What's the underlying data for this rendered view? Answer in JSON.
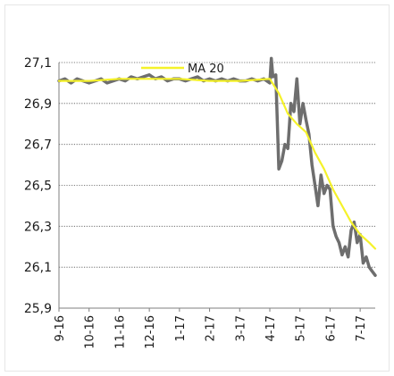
{
  "chart_data": {
    "type": "line",
    "title": "",
    "xlabel": "",
    "ylabel": "",
    "ylim": [
      25.9,
      27.1
    ],
    "y_ticks": [
      "25,9",
      "26,1",
      "26,3",
      "26,5",
      "26,7",
      "26,9",
      "27,1"
    ],
    "y_tick_values": [
      25.9,
      26.1,
      26.3,
      26.5,
      26.7,
      26.9,
      27.1
    ],
    "x_ticks": [
      "9-16",
      "10-16",
      "11-16",
      "12-16",
      "1-17",
      "2-17",
      "3-17",
      "4-17",
      "5-17",
      "6-17",
      "7-17"
    ],
    "xlim": [
      0,
      10.5
    ],
    "grid": "horizontal dotted",
    "legend": {
      "placement": "top-center"
    },
    "series": [
      {
        "name": "",
        "color": "#6e6e6e",
        "x": [
          0,
          0.2,
          0.4,
          0.6,
          0.8,
          1.0,
          1.2,
          1.4,
          1.6,
          1.8,
          2.0,
          2.2,
          2.4,
          2.6,
          2.8,
          3.0,
          3.2,
          3.4,
          3.6,
          3.8,
          4.0,
          4.2,
          4.4,
          4.6,
          4.8,
          5.0,
          5.2,
          5.4,
          5.6,
          5.8,
          6.0,
          6.2,
          6.4,
          6.6,
          6.8,
          7.0,
          7.05,
          7.1,
          7.2,
          7.3,
          7.4,
          7.5,
          7.6,
          7.7,
          7.8,
          7.9,
          8.0,
          8.1,
          8.2,
          8.3,
          8.4,
          8.5,
          8.6,
          8.7,
          8.8,
          8.9,
          9.0,
          9.1,
          9.2,
          9.3,
          9.4,
          9.5,
          9.6,
          9.7,
          9.8,
          9.9,
          10.0,
          10.1,
          10.2,
          10.3,
          10.4,
          10.5
        ],
        "values": [
          27.01,
          27.02,
          27.0,
          27.02,
          27.01,
          27.0,
          27.01,
          27.02,
          27.0,
          27.01,
          27.02,
          27.01,
          27.03,
          27.02,
          27.03,
          27.04,
          27.02,
          27.03,
          27.01,
          27.02,
          27.02,
          27.01,
          27.02,
          27.03,
          27.01,
          27.02,
          27.01,
          27.02,
          27.01,
          27.02,
          27.01,
          27.01,
          27.02,
          27.01,
          27.02,
          27.0,
          27.12,
          27.03,
          27.04,
          26.58,
          26.62,
          26.7,
          26.68,
          26.9,
          26.86,
          27.02,
          26.8,
          26.9,
          26.82,
          26.75,
          26.6,
          26.5,
          26.4,
          26.55,
          26.46,
          26.5,
          26.48,
          26.3,
          26.25,
          26.22,
          26.16,
          26.2,
          26.15,
          26.28,
          26.32,
          26.22,
          26.26,
          26.12,
          26.15,
          26.1,
          26.08,
          26.06
        ]
      },
      {
        "name": "MA 20",
        "color": "#f5f22a",
        "x": [
          0,
          1,
          2,
          3,
          4,
          5,
          6,
          7.0,
          7.3,
          7.6,
          7.9,
          8.2,
          8.5,
          8.8,
          9.1,
          9.4,
          9.7,
          10.0,
          10.3,
          10.5
        ],
        "values": [
          27.01,
          27.01,
          27.02,
          27.02,
          27.02,
          27.01,
          27.01,
          27.02,
          26.95,
          26.85,
          26.8,
          26.76,
          26.66,
          26.58,
          26.48,
          26.4,
          26.32,
          26.26,
          26.22,
          26.19
        ]
      }
    ]
  }
}
